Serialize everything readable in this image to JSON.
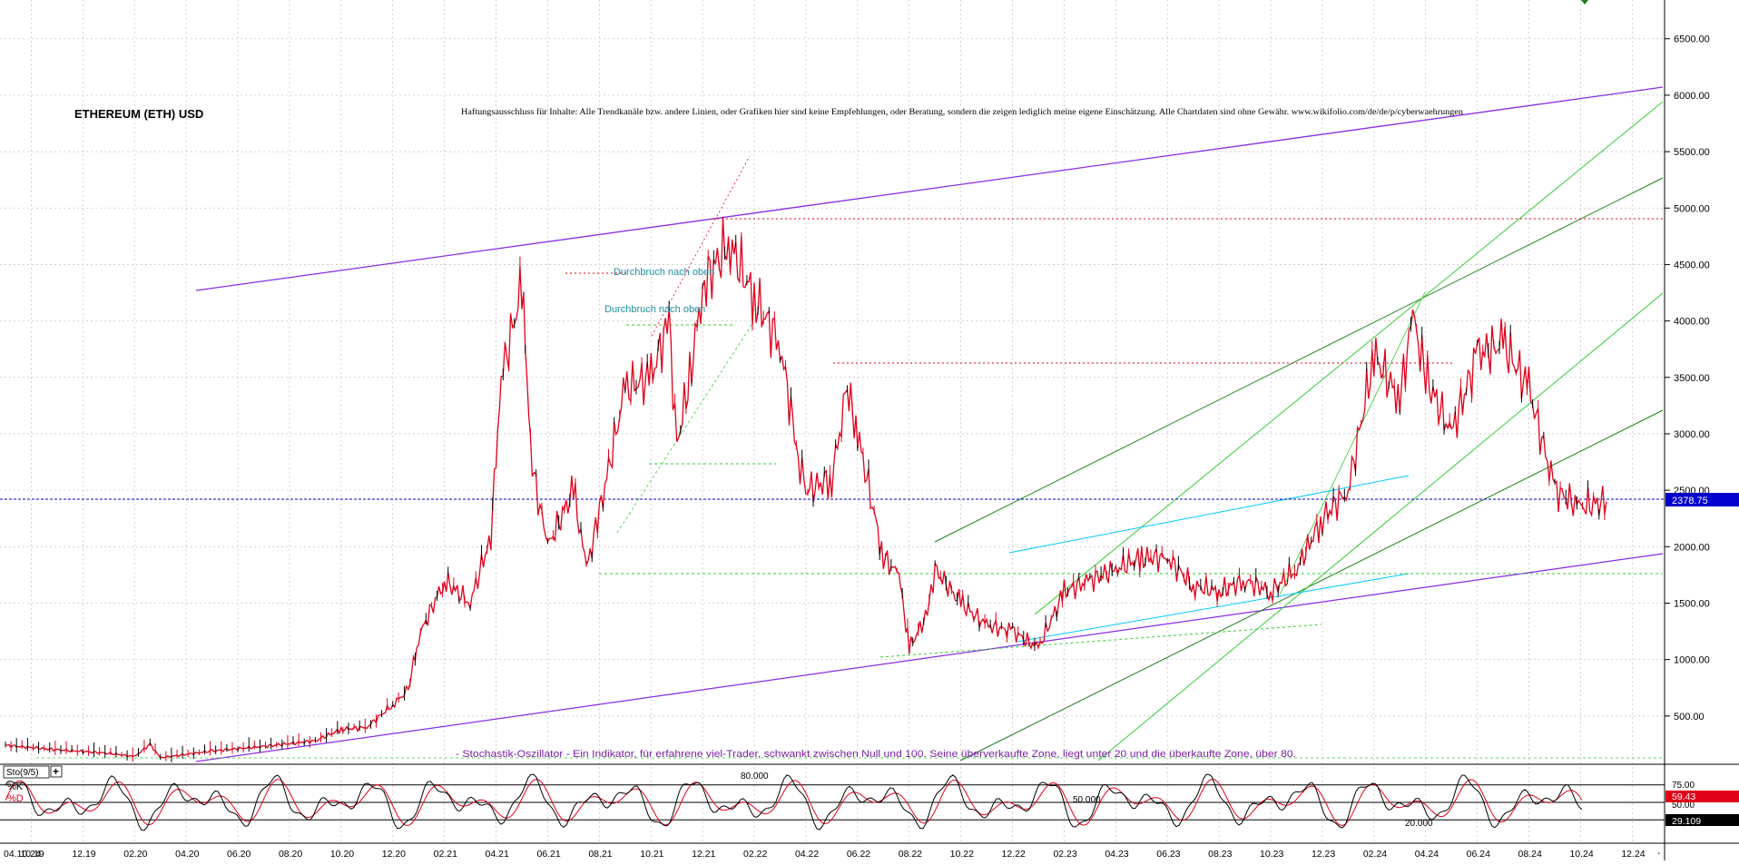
{
  "chart_data": {
    "type": "line",
    "title": "ETHEREUM (ETH) USD",
    "disclaimer": "Haftungsausschluss für Inhalte: Alle Trendkanäle bzw. andere Linien, oder Grafiken hier sind keine Empfehlungen, oder Beratung, sondern die zeigen lediglich meine eigene Einschätzung. Alle Chartdaten sind ohne Gewähr.  www.wikifolio.com/de/de/p/cyberwaehrungen",
    "oscillator_note": "- Stochastik-Oszillator - Ein Indikator, für erfahrene viel-Trader, schwankt zwischen Null und 100. Seine überverkaufte Zone, liegt unter 20 und die überkaufte Zone, über 80.",
    "annotations": [
      "Durchbruch nach oben",
      "Durchbruch nach oben"
    ],
    "last_price": "2378.75",
    "ylim": [
      0,
      6800
    ],
    "y_ticks": [
      500,
      1000,
      1500,
      2000,
      2500,
      3000,
      3500,
      4000,
      4500,
      5000,
      5500,
      6000,
      6500
    ],
    "y_tick_labels": [
      "500.00",
      "1000.00",
      "1500.00",
      "2000.00",
      "2500.00",
      "3000.00",
      "3500.00",
      "4000.00",
      "4500.00",
      "5000.00",
      "5500.00",
      "6000.00",
      "6500.00"
    ],
    "x_labels": [
      "04.10.24",
      "10.19",
      "12.19",
      "02.20",
      "04.20",
      "06.20",
      "08.20",
      "10.20",
      "12.20",
      "02.21",
      "04.21",
      "06.21",
      "08.21",
      "10.21",
      "12.21",
      "02.22",
      "04.22",
      "06.22",
      "08.22",
      "10.22",
      "12.22",
      "02.23",
      "04.23",
      "06.23",
      "08.23",
      "10.23",
      "12.23",
      "02.24",
      "04.24",
      "06.24",
      "08.24",
      "10.24",
      "12.24"
    ],
    "x_label_months": [
      -0.2,
      1,
      3,
      5,
      7,
      9,
      11,
      13,
      15,
      17,
      19,
      21,
      23,
      25,
      27,
      29,
      31,
      33,
      35,
      37,
      39,
      41,
      43,
      45,
      47,
      49,
      51,
      53,
      55,
      57,
      59,
      61,
      63
    ],
    "price_series": {
      "name": "ETH",
      "x_month": [
        0,
        2,
        4,
        5,
        5.6,
        6,
        8,
        10,
        12,
        13,
        14,
        15,
        15.6,
        16,
        17,
        18,
        18.8,
        19.2,
        20,
        20.4,
        21,
        22,
        22.5,
        23,
        24,
        25,
        25.7,
        26,
        26.5,
        27,
        28,
        29,
        30,
        30.7,
        31,
        32,
        32.6,
        33,
        34,
        34.6,
        35,
        35.7,
        36,
        37,
        38,
        39,
        40,
        41,
        42,
        43,
        44,
        45,
        46,
        47,
        48,
        49,
        50,
        51,
        52,
        53,
        54,
        54.5,
        55,
        56,
        57,
        58,
        59,
        60,
        61,
        62
      ],
      "y": [
        240,
        200,
        170,
        140,
        250,
        130,
        190,
        230,
        280,
        380,
        400,
        600,
        730,
        1200,
        1700,
        1500,
        2100,
        3500,
        4300,
        2700,
        2000,
        2500,
        1800,
        2300,
        3400,
        3500,
        4000,
        2900,
        3500,
        4300,
        4700,
        4200,
        3800,
        2800,
        2500,
        2600,
        3400,
        3000,
        1900,
        1750,
        1100,
        1400,
        1800,
        1500,
        1300,
        1250,
        1100,
        1600,
        1700,
        1800,
        1900,
        1900,
        1650,
        1600,
        1700,
        1600,
        1800,
        2250,
        2500,
        3700,
        3300,
        4050,
        3500,
        3000,
        3700,
        3800,
        3400,
        2500,
        2350,
        2400
      ]
    },
    "stochastic": {
      "name": "Sto(9/5)",
      "k_label": "%K",
      "d_label": "%D",
      "ylim": [
        0,
        100
      ],
      "levels": [
        20,
        50,
        80
      ],
      "level_labels": [
        "20.000",
        "50.000",
        "80.000"
      ],
      "right_tick_labels": [
        "75.00",
        "50.00"
      ],
      "k_value": "59.43",
      "d_value": "29.109",
      "plus_glyph": "+"
    },
    "series_colors": {
      "price": "#e0001a",
      "price_dark": "#000000",
      "channel": "#8a2be2",
      "trend_dark": "#1b7f1b",
      "trend_light": "#32cd32",
      "cyan": "#00c8ff",
      "last_price_line": "#0000cc",
      "grid": "#c8c8c8",
      "annotation_text": "#1e8f9e",
      "k_line": "#000000",
      "d_line": "#e0001a"
    }
  }
}
